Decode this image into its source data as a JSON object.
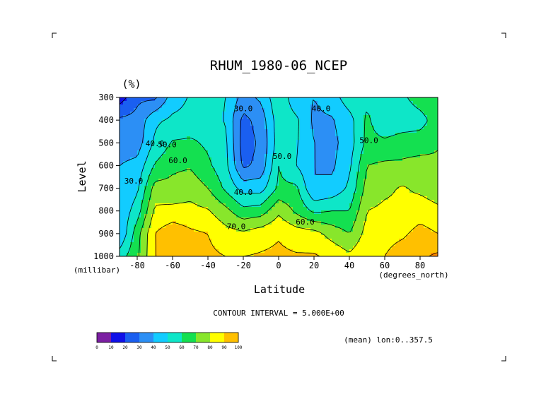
{
  "chart_data": {
    "type": "heatmap",
    "title": "RHUM_1980-06_NCEP",
    "units_label": "(%)",
    "xlabel": "Latitude",
    "ylabel": "Level",
    "x_unit_label": "(degrees_north)",
    "y_unit_label": "(millibar)",
    "xlim": [
      -90,
      90
    ],
    "ylim": [
      1000,
      300
    ],
    "x_ticks": [
      -80,
      -60,
      -40,
      -20,
      0,
      20,
      40,
      60,
      80
    ],
    "y_ticks": [
      300,
      400,
      500,
      600,
      700,
      800,
      900,
      1000
    ],
    "contour_interval_text": "CONTOUR INTERVAL = 5.000E+00",
    "mean_text": "(mean) lon:0..357.5",
    "x": [
      -90,
      -80,
      -70,
      -60,
      -50,
      -40,
      -30,
      -20,
      -10,
      0,
      10,
      20,
      30,
      40,
      50,
      60,
      70,
      80,
      90
    ],
    "levels": [
      300,
      400,
      500,
      600,
      700,
      800,
      900,
      1000
    ],
    "values": [
      [
        5,
        18,
        18,
        35,
        41,
        44,
        40,
        26,
        32,
        48,
        33,
        30,
        35,
        46,
        48,
        40,
        48,
        55,
        60
      ],
      [
        22,
        23,
        38,
        42,
        43,
        47,
        39,
        17,
        24,
        46,
        42,
        28,
        29,
        36,
        52,
        42,
        44,
        46,
        55
      ],
      [
        25,
        25,
        42,
        51,
        52,
        48,
        42,
        15,
        22,
        45,
        41,
        30,
        27,
        35,
        53,
        52,
        55,
        55,
        59
      ],
      [
        30,
        33,
        51,
        58,
        59,
        52,
        43,
        18,
        23,
        50,
        40,
        30,
        28,
        38,
        60,
        62,
        62,
        64,
        62
      ],
      [
        31,
        38,
        64,
        63,
        66,
        60,
        48,
        36,
        36,
        52,
        52,
        30,
        33,
        42,
        64,
        68,
        71,
        68,
        65
      ],
      [
        32,
        45,
        72,
        73,
        73,
        71,
        63,
        53,
        55,
        68,
        58,
        48,
        50,
        50,
        70,
        72,
        72,
        75,
        72
      ],
      [
        30,
        56,
        80,
        87,
        82,
        80,
        74,
        72,
        76,
        79,
        75,
        74,
        66,
        60,
        74,
        76,
        78,
        84,
        80
      ],
      [
        45,
        58,
        80,
        83,
        82,
        82,
        80,
        80,
        81,
        82,
        81,
        81,
        78,
        72,
        79,
        80,
        86,
        88,
        92
      ]
    ],
    "contour_labels": [
      {
        "text": "30.0",
        "x": -20,
        "y": 360
      },
      {
        "text": "40.0",
        "x": 24,
        "y": 360
      },
      {
        "text": "40.0",
        "x": -70,
        "y": 515
      },
      {
        "text": "50.0",
        "x": -63,
        "y": 520
      },
      {
        "text": "50.0",
        "x": 51,
        "y": 500
      },
      {
        "text": "50.0",
        "x": 2,
        "y": 570
      },
      {
        "text": "60.0",
        "x": -57,
        "y": 590
      },
      {
        "text": "30.0",
        "x": -82,
        "y": 680
      },
      {
        "text": "40.0",
        "x": -20,
        "y": 730
      },
      {
        "text": "60.0",
        "x": 15,
        "y": 860
      },
      {
        "text": "70.0",
        "x": -24,
        "y": 880
      }
    ],
    "colorbar": {
      "ticks": [
        "0",
        "10",
        "20",
        "30",
        "40",
        "50",
        "60",
        "70",
        "80",
        "90",
        "100"
      ],
      "colors": [
        "#7b1fa2",
        "#1010e8",
        "#1a5ff0",
        "#2c8ff5",
        "#12ccff",
        "#0ee6c8",
        "#14e050",
        "#88e62b",
        "#ffff00",
        "#ffc000",
        "#ff8a00",
        "#ff4d00",
        "#f50000"
      ]
    }
  }
}
